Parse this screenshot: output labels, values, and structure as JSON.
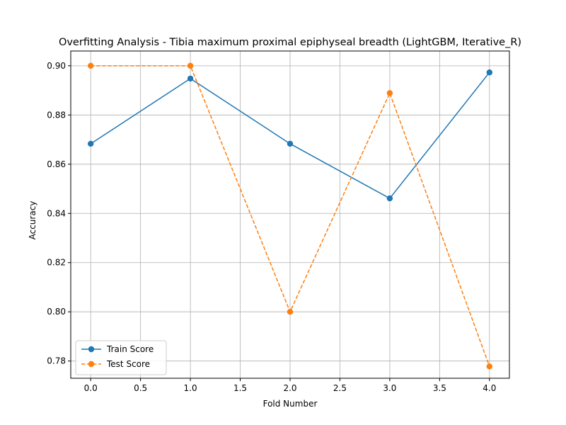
{
  "chart_data": {
    "type": "line",
    "title": "Overfitting Analysis - Tibia maximum proximal epiphyseal breadth (LightGBM, Iterative_R)",
    "xlabel": "Fold Number",
    "ylabel": "Accuracy",
    "x": [
      0,
      1,
      2,
      3,
      4
    ],
    "xlim": [
      -0.2,
      4.2
    ],
    "ylim": [
      0.773,
      0.906
    ],
    "xticks": [
      "0.0",
      "0.5",
      "1.0",
      "1.5",
      "2.0",
      "2.5",
      "3.0",
      "3.5",
      "4.0"
    ],
    "yticks": [
      "0.78",
      "0.80",
      "0.82",
      "0.84",
      "0.86",
      "0.88",
      "0.90"
    ],
    "grid": true,
    "legend_position": "lower-left",
    "series": [
      {
        "name": "Train Score",
        "values": [
          0.8683,
          0.8948,
          0.8683,
          0.8461,
          0.8973
        ],
        "color": "#1f77b4",
        "linestyle": "solid",
        "marker": "circle"
      },
      {
        "name": "Test Score",
        "values": [
          0.9,
          0.9,
          0.8,
          0.8889,
          0.7778
        ],
        "color": "#ff7f0e",
        "linestyle": "dashed",
        "marker": "circle"
      }
    ]
  }
}
